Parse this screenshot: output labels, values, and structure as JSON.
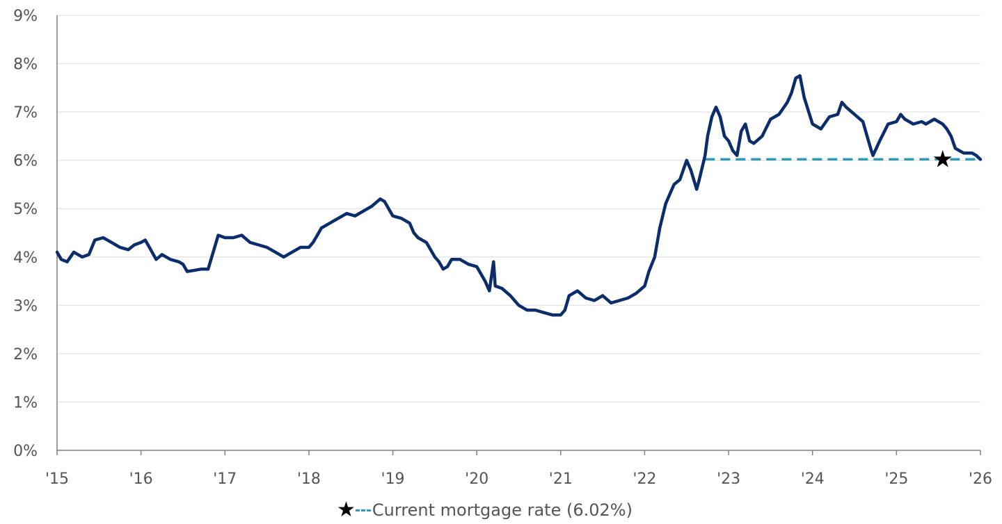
{
  "chart_data": {
    "type": "line",
    "title": "",
    "xlabel": "",
    "ylabel": "",
    "x_tick_labels": [
      "'15",
      "'16",
      "'17",
      "'18",
      "'19",
      "'20",
      "'21",
      "'22",
      "'23",
      "'24",
      "'25",
      "'26"
    ],
    "y_tick_labels": [
      "0%",
      "1%",
      "2%",
      "3%",
      "4%",
      "5%",
      "6%",
      "7%",
      "8%",
      "9%"
    ],
    "xlim": [
      2015.0,
      2026.0
    ],
    "ylim": [
      0,
      9
    ],
    "grid": "horizontal",
    "series": [
      {
        "name": "",
        "color": "#0b2d6b",
        "points": [
          [
            2015.0,
            4.1
          ],
          [
            2015.05,
            3.95
          ],
          [
            2015.12,
            3.9
          ],
          [
            2015.2,
            4.1
          ],
          [
            2015.3,
            4.0
          ],
          [
            2015.38,
            4.05
          ],
          [
            2015.45,
            4.35
          ],
          [
            2015.55,
            4.4
          ],
          [
            2015.65,
            4.3
          ],
          [
            2015.75,
            4.2
          ],
          [
            2015.85,
            4.15
          ],
          [
            2015.92,
            4.25
          ],
          [
            2016.0,
            4.3
          ],
          [
            2016.05,
            4.35
          ],
          [
            2016.1,
            4.2
          ],
          [
            2016.18,
            3.95
          ],
          [
            2016.25,
            4.05
          ],
          [
            2016.35,
            3.95
          ],
          [
            2016.45,
            3.9
          ],
          [
            2016.5,
            3.85
          ],
          [
            2016.55,
            3.7
          ],
          [
            2016.62,
            3.72
          ],
          [
            2016.72,
            3.75
          ],
          [
            2016.8,
            3.75
          ],
          [
            2016.86,
            4.1
          ],
          [
            2016.92,
            4.45
          ],
          [
            2017.0,
            4.4
          ],
          [
            2017.1,
            4.4
          ],
          [
            2017.2,
            4.45
          ],
          [
            2017.3,
            4.3
          ],
          [
            2017.4,
            4.25
          ],
          [
            2017.5,
            4.2
          ],
          [
            2017.6,
            4.1
          ],
          [
            2017.7,
            4.0
          ],
          [
            2017.8,
            4.1
          ],
          [
            2017.9,
            4.2
          ],
          [
            2018.0,
            4.2
          ],
          [
            2018.05,
            4.3
          ],
          [
            2018.1,
            4.45
          ],
          [
            2018.15,
            4.6
          ],
          [
            2018.2,
            4.65
          ],
          [
            2018.3,
            4.75
          ],
          [
            2018.4,
            4.85
          ],
          [
            2018.45,
            4.9
          ],
          [
            2018.55,
            4.85
          ],
          [
            2018.65,
            4.95
          ],
          [
            2018.75,
            5.05
          ],
          [
            2018.85,
            5.2
          ],
          [
            2018.9,
            5.15
          ],
          [
            2019.0,
            4.85
          ],
          [
            2019.1,
            4.8
          ],
          [
            2019.2,
            4.7
          ],
          [
            2019.25,
            4.5
          ],
          [
            2019.3,
            4.4
          ],
          [
            2019.4,
            4.3
          ],
          [
            2019.5,
            4.0
          ],
          [
            2019.55,
            3.9
          ],
          [
            2019.6,
            3.75
          ],
          [
            2019.65,
            3.8
          ],
          [
            2019.7,
            3.95
          ],
          [
            2019.8,
            3.95
          ],
          [
            2019.9,
            3.85
          ],
          [
            2020.0,
            3.8
          ],
          [
            2020.1,
            3.5
          ],
          [
            2020.15,
            3.3
          ],
          [
            2020.2,
            3.9
          ],
          [
            2020.22,
            3.4
          ],
          [
            2020.3,
            3.35
          ],
          [
            2020.4,
            3.2
          ],
          [
            2020.5,
            3.0
          ],
          [
            2020.6,
            2.9
          ],
          [
            2020.7,
            2.9
          ],
          [
            2020.8,
            2.85
          ],
          [
            2020.9,
            2.8
          ],
          [
            2021.0,
            2.8
          ],
          [
            2021.05,
            2.9
          ],
          [
            2021.1,
            3.2
          ],
          [
            2021.2,
            3.3
          ],
          [
            2021.3,
            3.15
          ],
          [
            2021.4,
            3.1
          ],
          [
            2021.5,
            3.2
          ],
          [
            2021.6,
            3.05
          ],
          [
            2021.7,
            3.1
          ],
          [
            2021.8,
            3.15
          ],
          [
            2021.9,
            3.25
          ],
          [
            2022.0,
            3.4
          ],
          [
            2022.05,
            3.7
          ],
          [
            2022.12,
            4.0
          ],
          [
            2022.18,
            4.6
          ],
          [
            2022.25,
            5.1
          ],
          [
            2022.3,
            5.3
          ],
          [
            2022.35,
            5.5
          ],
          [
            2022.42,
            5.6
          ],
          [
            2022.5,
            6.0
          ],
          [
            2022.55,
            5.8
          ],
          [
            2022.62,
            5.4
          ],
          [
            2022.65,
            5.6
          ],
          [
            2022.72,
            6.1
          ],
          [
            2022.75,
            6.5
          ],
          [
            2022.8,
            6.9
          ],
          [
            2022.85,
            7.1
          ],
          [
            2022.9,
            6.9
          ],
          [
            2022.95,
            6.5
          ],
          [
            2023.0,
            6.4
          ],
          [
            2023.05,
            6.2
          ],
          [
            2023.1,
            6.1
          ],
          [
            2023.15,
            6.6
          ],
          [
            2023.2,
            6.75
          ],
          [
            2023.25,
            6.4
          ],
          [
            2023.3,
            6.35
          ],
          [
            2023.4,
            6.5
          ],
          [
            2023.5,
            6.85
          ],
          [
            2023.6,
            6.95
          ],
          [
            2023.7,
            7.2
          ],
          [
            2023.75,
            7.4
          ],
          [
            2023.8,
            7.7
          ],
          [
            2023.85,
            7.75
          ],
          [
            2023.9,
            7.3
          ],
          [
            2024.0,
            6.75
          ],
          [
            2024.05,
            6.7
          ],
          [
            2024.1,
            6.65
          ],
          [
            2024.2,
            6.9
          ],
          [
            2024.3,
            6.95
          ],
          [
            2024.35,
            7.2
          ],
          [
            2024.4,
            7.1
          ],
          [
            2024.5,
            6.95
          ],
          [
            2024.6,
            6.8
          ],
          [
            2024.65,
            6.5
          ],
          [
            2024.7,
            6.2
          ],
          [
            2024.72,
            6.1
          ],
          [
            2024.8,
            6.4
          ],
          [
            2024.9,
            6.75
          ],
          [
            2025.0,
            6.8
          ],
          [
            2025.05,
            6.95
          ],
          [
            2025.1,
            6.85
          ],
          [
            2025.2,
            6.75
          ],
          [
            2025.3,
            6.8
          ],
          [
            2025.35,
            6.75
          ],
          [
            2025.45,
            6.85
          ],
          [
            2025.55,
            6.75
          ],
          [
            2025.6,
            6.65
          ],
          [
            2025.65,
            6.5
          ],
          [
            2025.7,
            6.25
          ],
          [
            2025.75,
            6.2
          ],
          [
            2025.8,
            6.15
          ],
          [
            2025.9,
            6.15
          ],
          [
            2025.95,
            6.1
          ],
          [
            2026.0,
            6.02
          ]
        ]
      }
    ],
    "reference_line": {
      "label": "Current mortgage rate (6.02%)",
      "value": 6.02,
      "x_start": 2022.72,
      "x_end": 2026.0,
      "color": "#2a9bbf",
      "style": "dashed"
    },
    "star_marker": {
      "x": 2025.55,
      "y": 6.02,
      "color": "#000000"
    },
    "legend": {
      "position": "bottom-center",
      "star_symbol": "★",
      "label": "Current mortgage rate (6.02%)"
    }
  }
}
